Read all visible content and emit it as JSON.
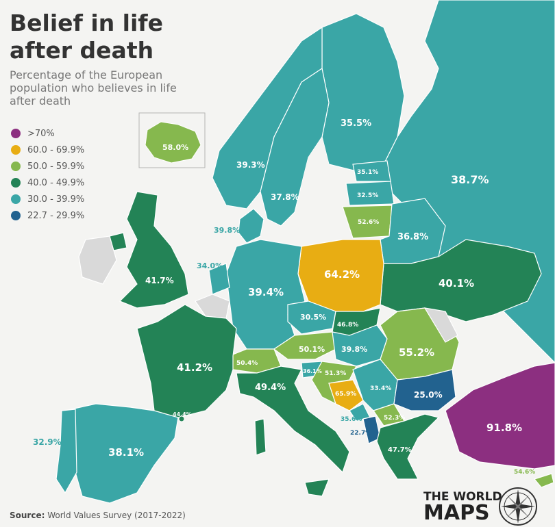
{
  "title_line1": "Belief in life",
  "title_line2": "after death",
  "subtitle": "Percentage of the European population who believes in life after death",
  "legend": [
    {
      "label": ">70%",
      "color": "#8c2f80"
    },
    {
      "label": "60.0 - 69.9%",
      "color": "#e8ad13"
    },
    {
      "label": "50.0 - 59.9%",
      "color": "#86b84e"
    },
    {
      "label": "40.0 - 49.9%",
      "color": "#238356"
    },
    {
      "label": "30.0 - 39.9%",
      "color": "#3aa6a6"
    },
    {
      "label": "22.7 - 29.9%",
      "color": "#22628f"
    }
  ],
  "source_label": "Source:",
  "source_text": "World Values Survey (2017-2022)",
  "brand_line1": "THE WORLD",
  "brand_line2": "MAPS",
  "countries": {
    "iceland": "58.0%",
    "norway": "39.3%",
    "sweden": "37.8%",
    "finland": "35.5%",
    "estonia": "35.1%",
    "latvia": "32.5%",
    "lithuania": "52.6%",
    "russia": "38.7%",
    "belarus": "36.8%",
    "denmark": "39.8%",
    "netherlands": "34.0%",
    "uk": "41.7%",
    "germany": "39.4%",
    "poland": "64.2%",
    "ukraine": "40.1%",
    "czechia": "30.5%",
    "slovakia": "46.8%",
    "austria": "50.1%",
    "hungary": "39.8%",
    "romania": "55.2%",
    "switzerland": "50.4%",
    "france": "41.2%",
    "italy": "49.4%",
    "slovenia": "36.1%",
    "croatia": "51.3%",
    "bosnia": "65.9%",
    "serbia": "33.4%",
    "bulgaria": "25.0%",
    "montenegro": "35.6%",
    "north_macedonia": "52.3%",
    "albania": "22.7%",
    "greece": "47.7%",
    "turkey": "91.8%",
    "cyprus": "54.6%",
    "andorra": "44.4%",
    "portugal": "32.9%",
    "spain": "38.1%"
  }
}
